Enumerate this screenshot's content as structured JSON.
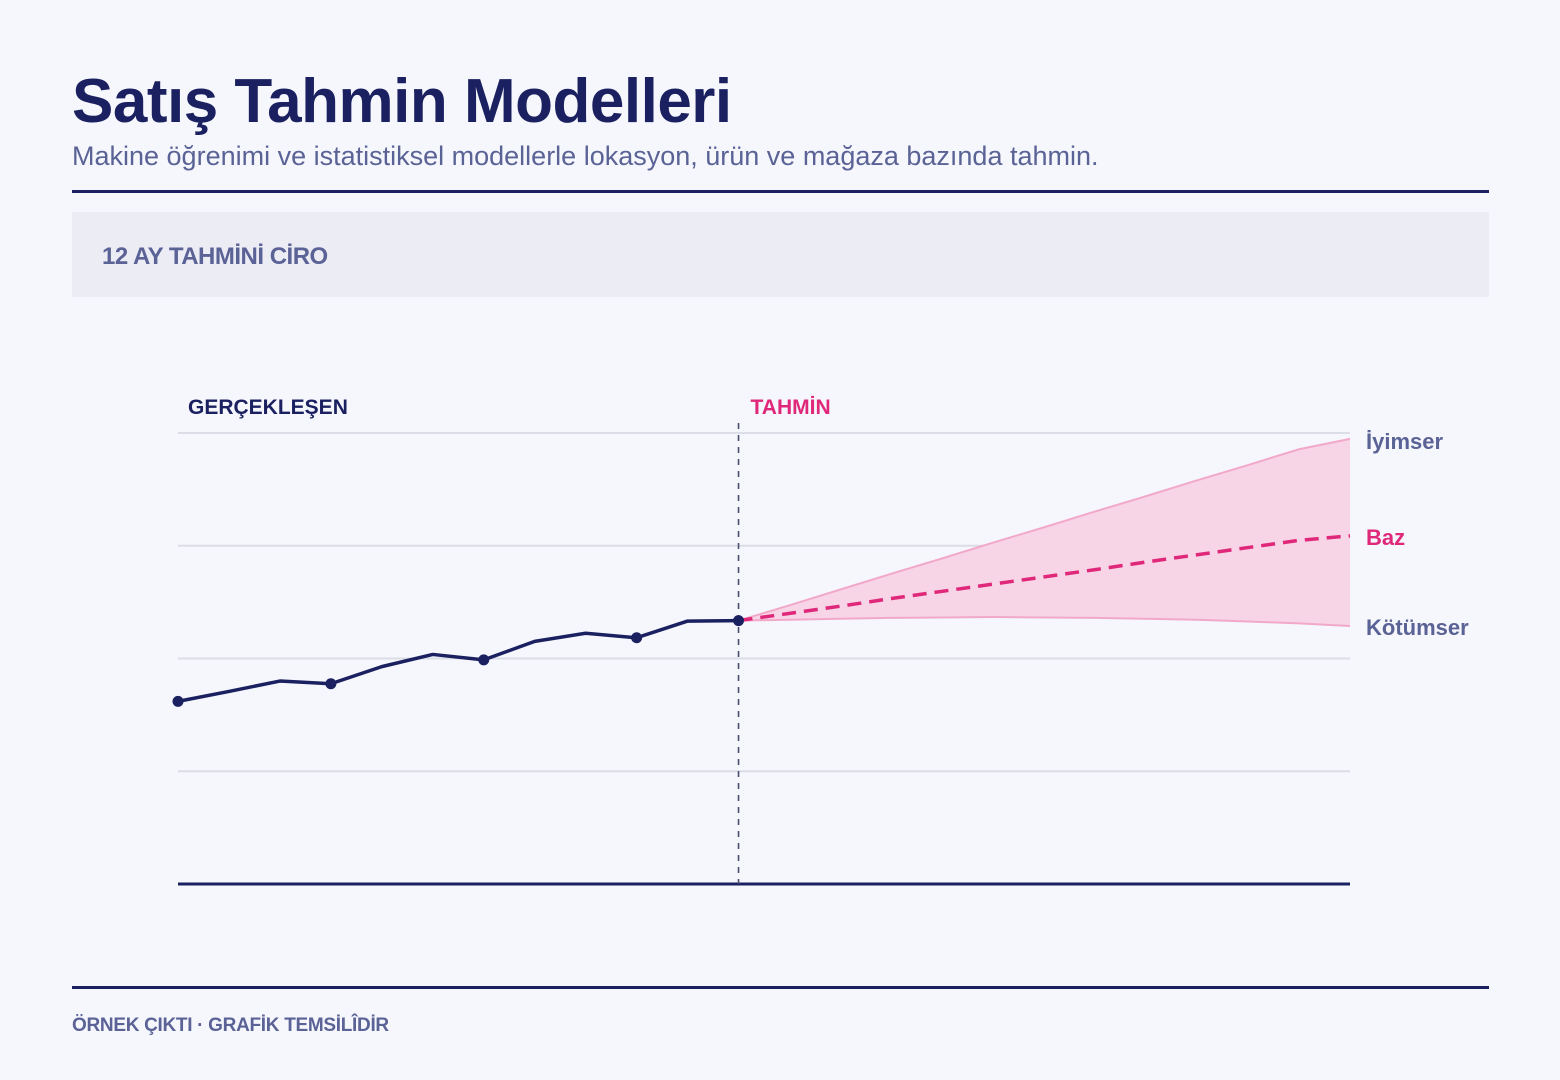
{
  "header": {
    "title": "Satış Tahmin Modelleri",
    "subtitle": "Makine öğrenimi ve istatistiksel modellerle lokasyon, ürün ve mağaza bazında tahmin."
  },
  "section": {
    "label": "12 AY TAHMİNİ CİRO"
  },
  "footer": {
    "text": "ÖRNEK ÇIKTI · GRAFİK TEMSİLÎDİR"
  },
  "colors": {
    "navy": "#1b2060",
    "pink": "#e0287a",
    "band": "#f7d5e6",
    "band_edge": "#f2a9c9",
    "grid": "#dcdde6",
    "muted": "#5a6296"
  },
  "chart_data": {
    "type": "line",
    "title": "",
    "xlabel": "",
    "ylabel": "",
    "xlim": [
      0,
      23
    ],
    "ylim": [
      0,
      100
    ],
    "grid": true,
    "region_labels": {
      "actual": "GERÇEKLEŞEN",
      "forecast": "TAHMİN"
    },
    "actual": {
      "x": [
        0,
        1,
        2,
        3,
        4,
        5,
        6,
        7,
        8,
        9,
        10,
        11
      ],
      "y": [
        40.5,
        42.7,
        45.0,
        44.4,
        48.2,
        50.9,
        49.7,
        53.8,
        55.6,
        54.6,
        58.3,
        58.4
      ],
      "marker_x": [
        0,
        3,
        6,
        9,
        11
      ]
    },
    "forecast": {
      "x": [
        11,
        12,
        13,
        14,
        15,
        16,
        17,
        18,
        19,
        20,
        21,
        22,
        23
      ],
      "series": [
        {
          "name": "İyimser",
          "values": [
            58.4,
            61.8,
            65.3,
            68.8,
            72.2,
            75.7,
            79.1,
            82.6,
            86.0,
            89.5,
            92.9,
            96.4,
            98.7
          ]
        },
        {
          "name": "Baz",
          "values": [
            58.4,
            60.0,
            61.6,
            63.3,
            64.9,
            66.5,
            68.1,
            69.7,
            71.4,
            73.0,
            74.6,
            76.2,
            77.2
          ]
        },
        {
          "name": "Kötümser",
          "values": [
            58.4,
            58.6,
            58.8,
            59.0,
            59.1,
            59.2,
            59.1,
            59.0,
            58.8,
            58.6,
            58.2,
            57.8,
            57.2
          ]
        }
      ]
    }
  }
}
